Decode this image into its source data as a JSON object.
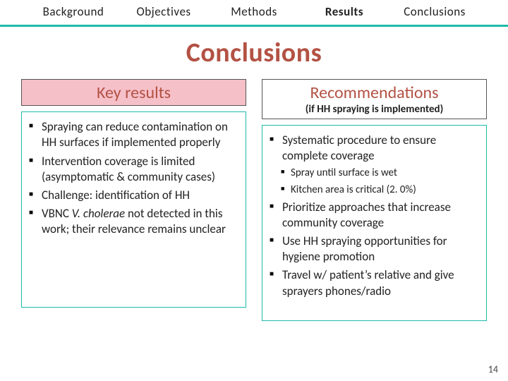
{
  "colors": {
    "accent": "#1fb9a8",
    "pink": "#f6c0c9",
    "border_dark": "#555555",
    "text": "#222222",
    "title_color": "#b35244"
  },
  "nav": {
    "items": [
      {
        "label": "Background",
        "active": false
      },
      {
        "label": "Objectives",
        "active": false
      },
      {
        "label": "Methods",
        "active": false
      },
      {
        "label": "Results",
        "active": true
      },
      {
        "label": "Conclusions",
        "active": false
      }
    ]
  },
  "title": "Conclusions",
  "left": {
    "heading": "Key results",
    "bullets": [
      "Spraying can reduce contamination on HH surfaces if implemented properly",
      "Intervention coverage is limited (asymptomatic & community cases)",
      "Challenge: identification of HH",
      "VBNC <span class=\"italic\">V. cholerae</span> not detected in this work; their relevance remains unclear"
    ]
  },
  "right": {
    "heading": "Recommendations",
    "subheading": "(if HH spraying is implemented)",
    "bullets": [
      {
        "text": "Systematic procedure to ensure complete coverage",
        "sub": [
          "Spray until surface is wet",
          "Kitchen area is critical (2. 0%)"
        ]
      },
      {
        "text": "Prioritize approaches that increase community coverage"
      },
      {
        "text": "Use HH spraying opportunities for hygiene promotion"
      },
      {
        "text": "Travel w/ patient’s relative and give sprayers phones/radio"
      }
    ]
  },
  "page_number": "14"
}
